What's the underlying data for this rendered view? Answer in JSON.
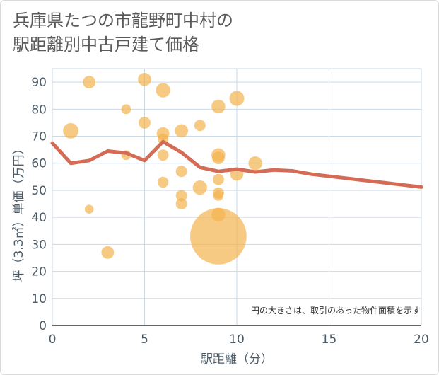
{
  "chart_data": {
    "type": "scatter",
    "title_line1": "兵庫県たつの市龍野町中村の",
    "title_line2": "駅距離別中古戸建て価格",
    "xlabel": "駅距離（分）",
    "ylabel": "坪（3.3㎡）単価（万円）",
    "xlim": [
      0,
      20
    ],
    "ylim": [
      0,
      95
    ],
    "xticks": [
      0,
      5,
      10,
      15,
      20
    ],
    "yticks": [
      0,
      10,
      20,
      30,
      40,
      50,
      60,
      70,
      80,
      90
    ],
    "note": "円の大きさは、取引のあった物件面積を示す",
    "colors": {
      "bubble": "#f3b44e",
      "line": "#d46b55",
      "grid": "#c9d9e6"
    },
    "points": [
      {
        "x": 1,
        "y": 72,
        "size": 3
      },
      {
        "x": 2,
        "y": 90,
        "size": 2
      },
      {
        "x": 2,
        "y": 43,
        "size": 1
      },
      {
        "x": 3,
        "y": 27,
        "size": 2
      },
      {
        "x": 4,
        "y": 80,
        "size": 1.2
      },
      {
        "x": 4,
        "y": 63,
        "size": 1.2
      },
      {
        "x": 5,
        "y": 91,
        "size": 2.2
      },
      {
        "x": 5,
        "y": 75,
        "size": 1.8
      },
      {
        "x": 6,
        "y": 87,
        "size": 2.6
      },
      {
        "x": 6,
        "y": 71,
        "size": 2
      },
      {
        "x": 6,
        "y": 69,
        "size": 1.5
      },
      {
        "x": 6,
        "y": 63,
        "size": 1.6
      },
      {
        "x": 6,
        "y": 53,
        "size": 1.5
      },
      {
        "x": 7,
        "y": 72,
        "size": 2.2
      },
      {
        "x": 7,
        "y": 57,
        "size": 1.6
      },
      {
        "x": 7,
        "y": 48,
        "size": 1.6
      },
      {
        "x": 7,
        "y": 45,
        "size": 1.6
      },
      {
        "x": 8,
        "y": 74,
        "size": 1.6
      },
      {
        "x": 8,
        "y": 51,
        "size": 2.6
      },
      {
        "x": 9,
        "y": 81,
        "size": 2.4
      },
      {
        "x": 9,
        "y": 63,
        "size": 2.4
      },
      {
        "x": 9,
        "y": 62,
        "size": 2
      },
      {
        "x": 9,
        "y": 54,
        "size": 1.6
      },
      {
        "x": 9,
        "y": 49,
        "size": 1.6
      },
      {
        "x": 9,
        "y": 48,
        "size": 1.3
      },
      {
        "x": 9,
        "y": 41,
        "size": 2.4
      },
      {
        "x": 9,
        "y": 33,
        "size": 40
      },
      {
        "x": 10,
        "y": 84,
        "size": 2.8
      },
      {
        "x": 10,
        "y": 56,
        "size": 2.2
      },
      {
        "x": 11,
        "y": 60,
        "size": 2.4
      }
    ],
    "trend": {
      "x": [
        0,
        1,
        2,
        3,
        4,
        5,
        6,
        7,
        8,
        9,
        10,
        11,
        12,
        13,
        14,
        15,
        16,
        17,
        18,
        19,
        20
      ],
      "y": [
        67.5,
        60,
        61,
        64.5,
        63.8,
        61,
        68,
        64,
        58.5,
        57,
        57.8,
        56.8,
        57.5,
        57.2,
        56,
        55.2,
        54.4,
        53.6,
        52.8,
        52,
        51.2
      ]
    }
  }
}
